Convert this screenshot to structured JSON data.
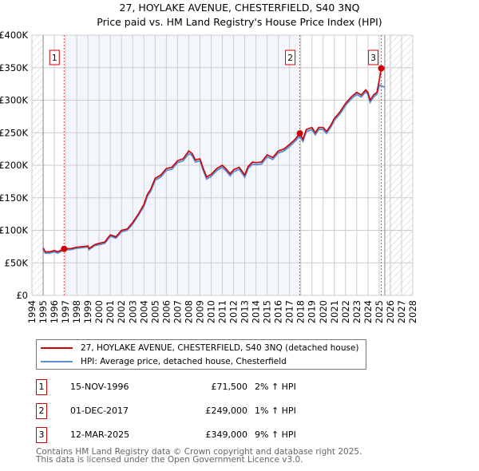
{
  "chart_data": {
    "type": "line",
    "title": "27, HOYLAKE AVENUE, CHESTERFIELD, S40 3NQ",
    "subtitle": "Price paid vs. HM Land Registry's House Price Index (HPI)",
    "xlim": [
      1994,
      2028
    ],
    "ylim": [
      0,
      400000
    ],
    "x_ticks": [
      "1994",
      "1995",
      "1996",
      "1997",
      "1998",
      "1999",
      "2000",
      "2001",
      "2002",
      "2003",
      "2004",
      "2005",
      "2006",
      "2007",
      "2008",
      "2009",
      "2010",
      "2011",
      "2012",
      "2013",
      "2014",
      "2015",
      "2016",
      "2017",
      "2018",
      "2019",
      "2020",
      "2021",
      "2022",
      "2023",
      "2024",
      "2025",
      "2026",
      "2027",
      "2028"
    ],
    "y_ticks": [
      {
        "v": 0,
        "l": "£0"
      },
      {
        "v": 50000,
        "l": "£50K"
      },
      {
        "v": 100000,
        "l": "£100K"
      },
      {
        "v": 150000,
        "l": "£150K"
      },
      {
        "v": 200000,
        "l": "£200K"
      },
      {
        "v": 250000,
        "l": "£250K"
      },
      {
        "v": 300000,
        "l": "£300K"
      },
      {
        "v": 350000,
        "l": "£350K"
      },
      {
        "v": 400000,
        "l": "£400K"
      }
    ],
    "grid": true,
    "hatched_ranges": [
      [
        1994,
        1995
      ],
      [
        2025.5,
        2028
      ]
    ],
    "series": [
      {
        "name": "27, HOYLAKE AVENUE, CHESTERFIELD, S40 3NQ (detached house)",
        "color": "#cc0000",
        "x": [
          1995.0,
          1995.2,
          1995.6,
          1996.0,
          1996.3,
          1996.87,
          1997.5,
          1998,
          1998.5,
          1999,
          1999.1,
          1999.6,
          2000,
          2000.5,
          2001,
          2001.5,
          2002,
          2002.5,
          2003,
          2003.5,
          2004,
          2004.3,
          2004.6,
          2005,
          2005.5,
          2006,
          2006.5,
          2007,
          2007.5,
          2008,
          2008.3,
          2008.6,
          2009,
          2009.3,
          2009.6,
          2010,
          2010.5,
          2011,
          2011.3,
          2011.7,
          2012,
          2012.5,
          2013,
          2013.3,
          2013.7,
          2014,
          2014.5,
          2015,
          2015.5,
          2016,
          2016.5,
          2017,
          2017.5,
          2017.92,
          2018.2,
          2018.5,
          2019,
          2019.3,
          2019.6,
          2020,
          2020.3,
          2020.7,
          2021,
          2021.5,
          2022,
          2022.5,
          2023,
          2023.4,
          2023.8,
          2024,
          2024.2,
          2024.5,
          2024.8,
          2025.0,
          2025.19
        ],
        "y": [
          73000,
          67000,
          67000,
          69000,
          67000,
          71500,
          72000,
          74000,
          75000,
          76000,
          72000,
          78000,
          80000,
          82000,
          93000,
          90000,
          100000,
          102000,
          112000,
          125000,
          140000,
          155000,
          163000,
          180000,
          185000,
          195000,
          197000,
          207000,
          210000,
          222000,
          218000,
          208000,
          210000,
          195000,
          182000,
          186000,
          195000,
          200000,
          195000,
          187000,
          193000,
          197000,
          185000,
          198000,
          205000,
          204000,
          205000,
          216000,
          212000,
          222000,
          225000,
          232000,
          240000,
          249000,
          240000,
          255000,
          258000,
          250000,
          258000,
          258000,
          252000,
          262000,
          272000,
          282000,
          295000,
          305000,
          312000,
          308000,
          316000,
          312000,
          300000,
          308000,
          312000,
          330000,
          349000
        ]
      },
      {
        "name": "HPI: Average price, detached house, Chesterfield",
        "color": "#5b8fd6",
        "x": [
          1995.0,
          1995.2,
          1995.6,
          1996.0,
          1996.3,
          1996.87,
          1997.5,
          1998,
          1998.5,
          1999,
          1999.1,
          1999.6,
          2000,
          2000.5,
          2001,
          2001.5,
          2002,
          2002.5,
          2003,
          2003.5,
          2004,
          2004.3,
          2004.6,
          2005,
          2005.5,
          2006,
          2006.5,
          2007,
          2007.5,
          2008,
          2008.3,
          2008.6,
          2009,
          2009.3,
          2009.6,
          2010,
          2010.5,
          2011,
          2011.3,
          2011.7,
          2012,
          2012.5,
          2013,
          2013.3,
          2013.7,
          2014,
          2014.5,
          2015,
          2015.5,
          2016,
          2016.5,
          2017,
          2017.5,
          2017.92,
          2018.2,
          2018.5,
          2019,
          2019.3,
          2019.6,
          2020,
          2020.3,
          2020.7,
          2021,
          2021.5,
          2022,
          2022.5,
          2023,
          2023.4,
          2023.8,
          2024,
          2024.2,
          2024.5,
          2024.8,
          2025.0,
          2025.2,
          2025.5
        ],
        "y": [
          71000,
          65000,
          65000,
          67000,
          65000,
          70000,
          70500,
          72500,
          73500,
          74500,
          70500,
          76500,
          78000,
          80000,
          91000,
          88000,
          98000,
          100000,
          110000,
          123000,
          137000,
          152000,
          160000,
          177000,
          182000,
          192000,
          194000,
          204000,
          207000,
          218000,
          215000,
          205000,
          207000,
          192000,
          179000,
          183000,
          192000,
          197000,
          192000,
          184000,
          190000,
          194000,
          182000,
          195000,
          202000,
          201000,
          202000,
          213000,
          209000,
          219000,
          222000,
          229000,
          237000,
          245000,
          237000,
          252000,
          255000,
          247000,
          255000,
          255000,
          249000,
          259000,
          269000,
          279000,
          292000,
          302000,
          309000,
          305000,
          313000,
          309000,
          297000,
          305000,
          309000,
          323000,
          322000,
          320000
        ]
      }
    ],
    "sales": [
      {
        "label": "1",
        "x": 1996.87,
        "y": 71500
      },
      {
        "label": "2",
        "x": 2017.92,
        "y": 249000
      },
      {
        "label": "3",
        "x": 2025.19,
        "y": 349000
      }
    ]
  },
  "table": [
    {
      "num": "1",
      "date": "15-NOV-1996",
      "price": "£71,500",
      "hpi": "2% ↑ HPI"
    },
    {
      "num": "2",
      "date": "01-DEC-2017",
      "price": "£249,000",
      "hpi": "1% ↑ HPI"
    },
    {
      "num": "3",
      "date": "12-MAR-2025",
      "price": "£349,000",
      "hpi": "9% ↑ HPI"
    }
  ],
  "footer": [
    "Contains HM Land Registry data © Crown copyright and database right 2025.",
    "This data is licensed under the Open Government Licence v3.0."
  ]
}
